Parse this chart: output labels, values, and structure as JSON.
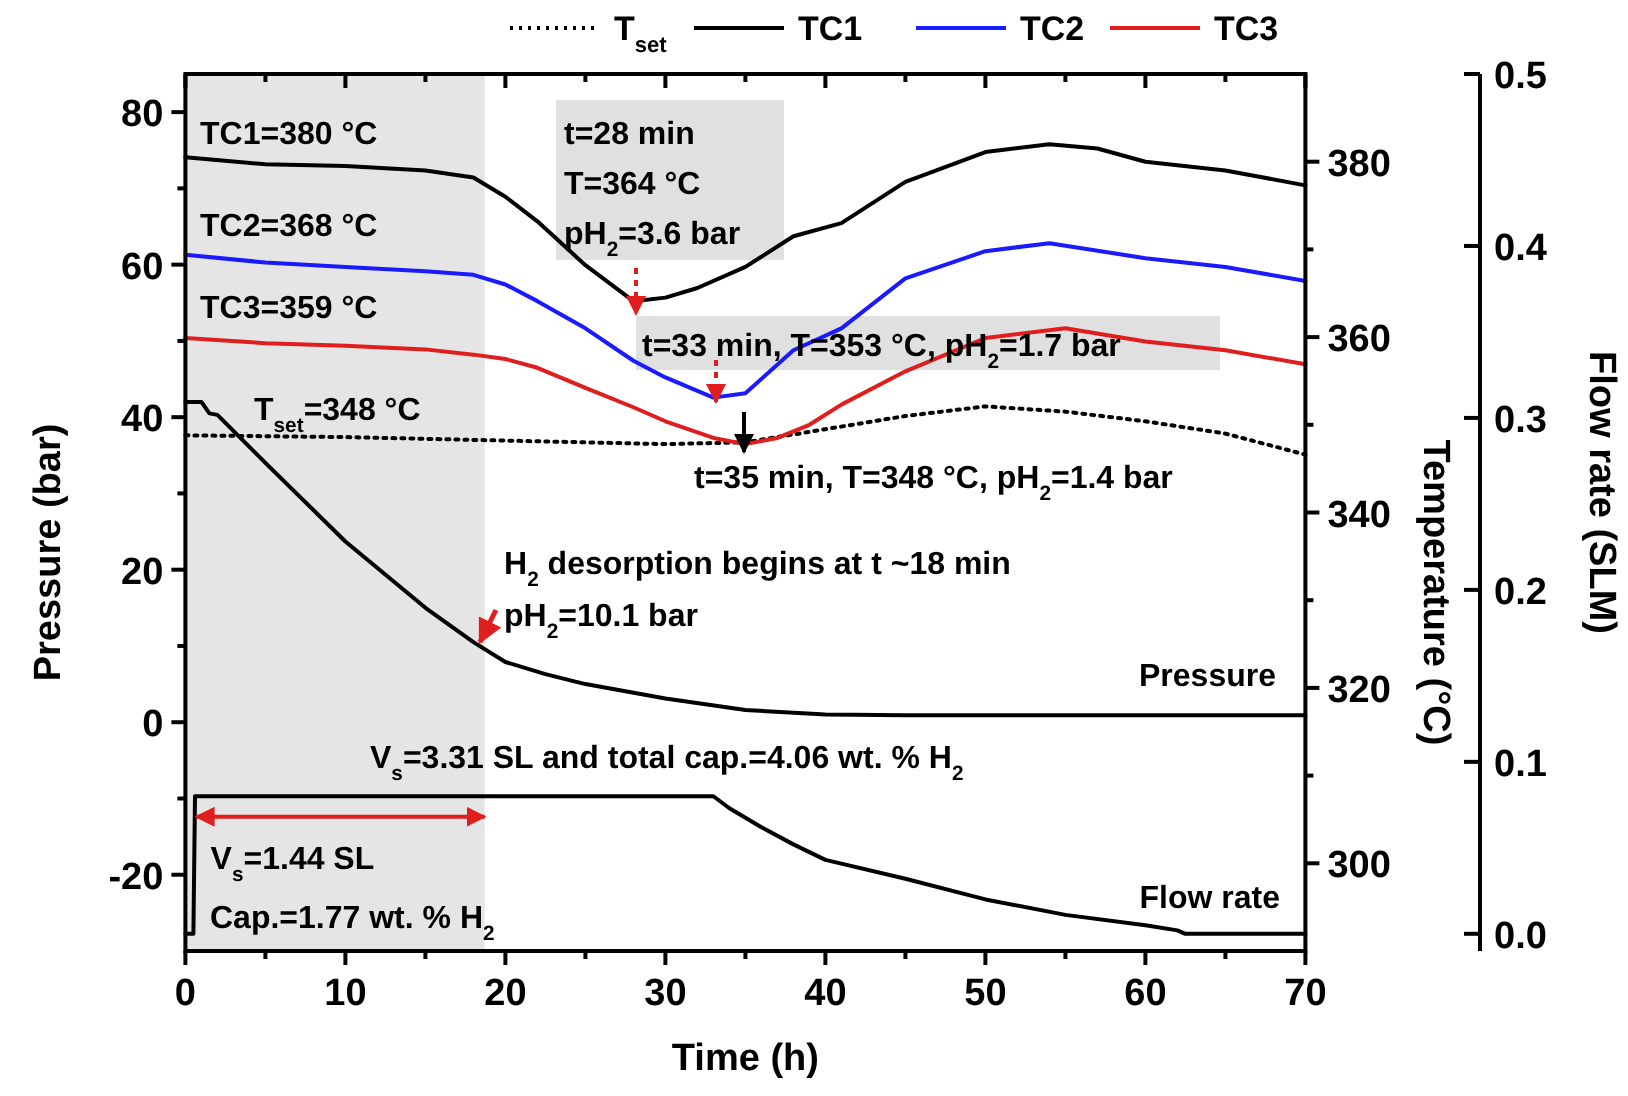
{
  "chart_data": {
    "type": "line",
    "xlabel": "Time (h)",
    "ylabel": "Pressure (bar)",
    "y2label": "Temperature (°C)",
    "y3label": "Flow rate (SLM)",
    "xlim": [
      0,
      70
    ],
    "ylim": [
      -30,
      85
    ],
    "y2lim": [
      290,
      390
    ],
    "y3lim": [
      -0.01,
      0.5
    ],
    "xticks": [
      0,
      {
        "value": 5,
        "label": null
      },
      10,
      {
        "value": 15,
        "label": null
      },
      20,
      {
        "value": 25,
        "label": null
      },
      30,
      {
        "value": 35,
        "label": null
      },
      40,
      {
        "value": 45,
        "label": null
      },
      50,
      {
        "value": 55,
        "label": null
      },
      60,
      {
        "value": 65,
        "label": null
      },
      70
    ],
    "yticks": [
      -20,
      {
        "value": -10,
        "label": null
      },
      0,
      {
        "value": 10,
        "label": null
      },
      20,
      {
        "value": 30,
        "label": null
      },
      40,
      {
        "value": 50,
        "label": null
      },
      60,
      {
        "value": 70,
        "label": null
      },
      80
    ],
    "y2ticks": [
      300,
      {
        "value": 310,
        "label": null
      },
      320,
      {
        "value": 330,
        "label": null
      },
      340,
      {
        "value": 350,
        "label": null
      },
      360,
      {
        "value": 370,
        "label": null
      },
      380
    ],
    "y3ticks": [
      {
        "value": 0,
        "label": "0.0"
      },
      0.1,
      0.2,
      0.3,
      0.4,
      0.5
    ],
    "legend": "top",
    "bands": [
      {
        "axis": "x",
        "from": 0,
        "to": 18.7,
        "color": "#e5e5e5"
      }
    ],
    "series": [
      {
        "name": "T$_{set}$",
        "color": "#000000",
        "axis": "y2",
        "line_style": "dotted",
        "x": [
          0,
          10,
          20,
          30,
          35,
          40,
          45,
          50,
          55,
          60,
          65,
          70
        ],
        "values": [
          348.8,
          348.6,
          348.2,
          347.8,
          348,
          349.5,
          351,
          352.1,
          351.5,
          350.4,
          349,
          346.6
        ]
      },
      {
        "name": "TC1",
        "color": "#000000",
        "axis": "y2",
        "x": [
          0,
          5,
          10,
          15,
          18,
          20,
          22,
          25,
          28,
          30,
          32,
          35,
          38,
          41,
          45,
          50,
          54,
          57,
          60,
          65,
          70
        ],
        "values": [
          380.5,
          379.7,
          379.5,
          379,
          378.2,
          376,
          373.2,
          368.2,
          364.1,
          364.5,
          365.6,
          368,
          371.5,
          373,
          377.7,
          381.1,
          382,
          381.5,
          380,
          379,
          377.3
        ]
      },
      {
        "name": "TC2",
        "color": "#1a1aff",
        "axis": "y2",
        "x": [
          0,
          5,
          10,
          15,
          18,
          20,
          22,
          25,
          28,
          30,
          33,
          35,
          38,
          41,
          45,
          50,
          54,
          60,
          65,
          70
        ],
        "values": [
          369.4,
          368.5,
          368,
          367.5,
          367.1,
          366,
          364.1,
          361,
          357.3,
          355.4,
          353.1,
          353.6,
          358.5,
          361,
          366.7,
          369.8,
          370.7,
          369,
          368,
          366.4
        ]
      },
      {
        "name": "TC3",
        "color": "#e01e1e",
        "axis": "y2",
        "x": [
          0,
          5,
          10,
          15,
          18,
          20,
          22,
          25,
          28,
          30,
          33,
          35,
          37,
          39,
          41,
          45,
          50,
          55,
          60,
          65,
          70
        ],
        "values": [
          359.9,
          359.3,
          359,
          358.6,
          358,
          357.5,
          356.5,
          354.2,
          352,
          350.4,
          348.5,
          347.8,
          348.5,
          350,
          352.3,
          356.1,
          359.9,
          361,
          359.5,
          358.5,
          356.9
        ]
      },
      {
        "color": "#000000",
        "x": [
          0,
          1,
          1.5,
          2,
          5,
          10,
          15,
          18,
          20,
          22.5,
          25,
          30,
          35,
          40,
          45,
          70
        ],
        "values": [
          42,
          42,
          40.5,
          40.3,
          34,
          23.7,
          15,
          10.5,
          7.9,
          6.3,
          5,
          3.1,
          1.6,
          1,
          0.9,
          0.9
        ]
      },
      {
        "color": "#000000",
        "axis": "y3",
        "x": [
          0,
          0.5,
          0.6,
          33,
          34,
          36,
          38,
          40,
          45,
          50,
          55,
          60,
          62,
          62.5,
          70
        ],
        "values": [
          0,
          0,
          0.08,
          0.08,
          0.073,
          0.062,
          0.052,
          0.043,
          0.032,
          0.02,
          0.011,
          0.005,
          0.002,
          0,
          0
        ]
      }
    ],
    "annotations": [
      "TC1=380 °C",
      "TC2=368 °C",
      "TC3=359 °C",
      "T$_{set}$=348 °C",
      "t=28 min",
      "T=364 °C",
      "pH$_{2}$=3.6 bar",
      "t=33 min, T=353 °C, pH$_{2}$=1.7 bar",
      "t=35 min, T=348 °C, pH$_{2}$=1.4 bar",
      "H$_{2}$ desorption begins at t ~18 min",
      "pH$_{2}$=10.1 bar",
      "Pressure",
      "V$_{s}$=3.31 SL and total cap.=4.06 wt. % H$_{2}$",
      {
        "text": "V$_{s}$=1.44 SL",
        "x": 0.7,
        "y": -12.4
      },
      "Cap.=1.77 wt. % H$_{2}$",
      "Flow rate"
    ]
  }
}
